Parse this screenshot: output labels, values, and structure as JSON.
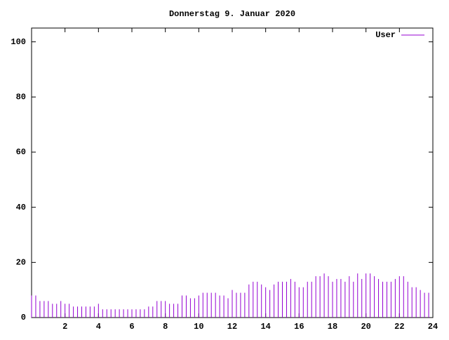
{
  "chart_data": {
    "type": "impulses",
    "title": "Donnerstag 9. Januar 2020",
    "x": [
      0,
      0.25,
      0.5,
      0.75,
      1,
      1.25,
      1.5,
      1.75,
      2,
      2.25,
      2.5,
      2.75,
      3,
      3.25,
      3.5,
      3.75,
      4,
      4.25,
      4.5,
      4.75,
      5,
      5.25,
      5.5,
      5.75,
      6,
      6.25,
      6.5,
      6.75,
      7,
      7.25,
      7.5,
      7.75,
      8,
      8.25,
      8.5,
      8.75,
      9,
      9.25,
      9.5,
      9.75,
      10,
      10.25,
      10.5,
      10.75,
      11,
      11.25,
      11.5,
      11.75,
      12,
      12.25,
      12.5,
      12.75,
      13,
      13.25,
      13.5,
      13.75,
      14,
      14.25,
      14.5,
      14.75,
      15,
      15.25,
      15.5,
      15.75,
      16,
      16.25,
      16.5,
      16.75,
      17,
      17.25,
      17.5,
      17.75,
      18,
      18.25,
      18.5,
      18.75,
      19,
      19.25,
      19.5,
      19.75,
      20,
      20.25,
      20.5,
      20.75,
      21,
      21.25,
      21.5,
      21.75,
      22,
      22.25,
      22.5,
      22.75,
      23,
      23.25,
      23.5,
      23.75
    ],
    "series": [
      {
        "name": "User",
        "color": "#9400d3",
        "values": [
          8,
          8,
          6,
          6,
          6,
          5,
          5,
          6,
          5,
          5,
          4,
          4,
          4,
          4,
          4,
          4,
          5,
          3,
          3,
          3,
          3,
          3,
          3,
          3,
          3,
          3,
          3,
          3,
          4,
          4,
          6,
          6,
          6,
          5,
          5,
          5,
          8,
          8,
          7,
          7,
          8,
          9,
          9,
          9,
          9,
          8,
          8,
          7,
          10,
          9,
          9,
          9,
          12,
          13,
          13,
          12,
          11,
          10,
          12,
          13,
          13,
          13,
          14,
          13,
          11,
          11,
          13,
          13,
          15,
          15,
          16,
          15,
          13,
          14,
          14,
          13,
          15,
          13,
          16,
          14,
          16,
          16,
          15,
          14,
          13,
          13,
          13,
          14,
          15,
          15,
          13,
          11,
          11,
          10,
          9,
          9
        ]
      }
    ],
    "xlim": [
      0,
      24
    ],
    "xticks": [
      2,
      4,
      6,
      8,
      10,
      12,
      14,
      16,
      18,
      20,
      22,
      24
    ],
    "ylim": [
      0,
      105
    ],
    "yticks": [
      0,
      20,
      40,
      60,
      80,
      100
    ],
    "legend": "top-right"
  }
}
